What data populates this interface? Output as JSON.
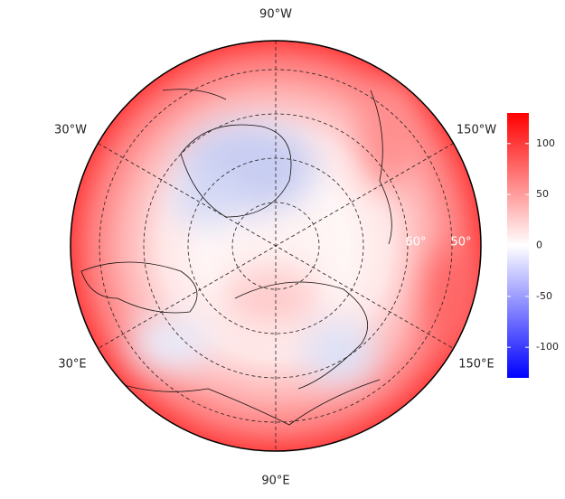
{
  "map": {
    "longitude_labels": [
      "90°W",
      "30°W",
      "150°W",
      "30°E",
      "150°E",
      "90°E"
    ],
    "latitude_labels": [
      "60°",
      "50°"
    ]
  },
  "colorbar": {
    "lim": [
      -130,
      130
    ],
    "ticks": [
      100,
      50,
      0,
      -50,
      -100
    ],
    "colors": [
      "#0000ff",
      "#ffffff",
      "#ff0000"
    ]
  }
}
